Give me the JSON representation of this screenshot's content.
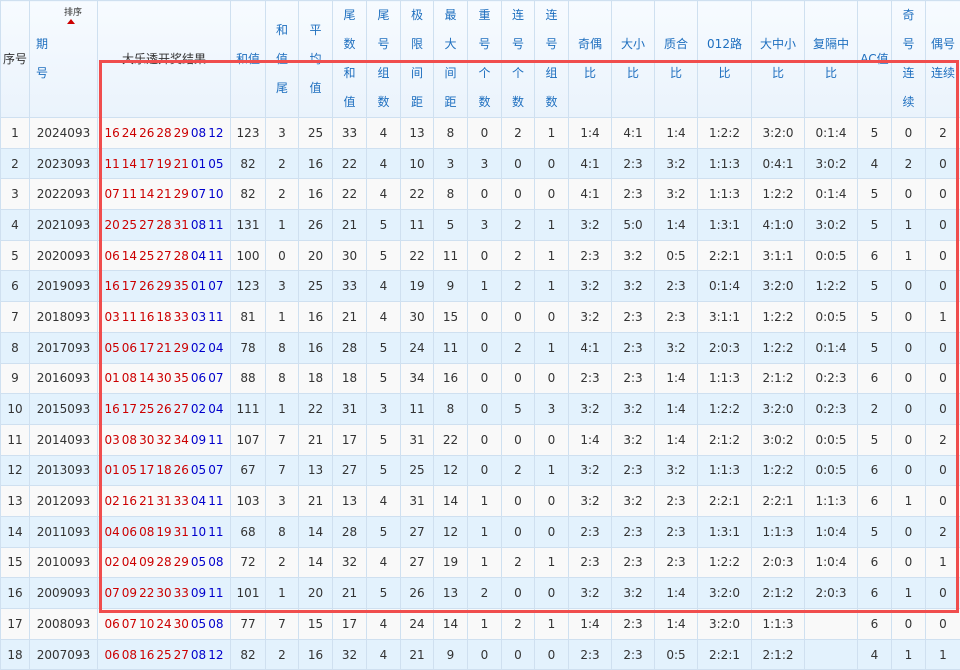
{
  "headers": [
    "序号",
    "期号",
    "大乐透开奖结果",
    "和值",
    "和值尾",
    "平均值",
    "尾数和值",
    "尾号组数",
    "极限间距",
    "最大间距",
    "重号个数",
    "连号个数",
    "连号组数",
    "奇偶比",
    "大小比",
    "质合比",
    "012路比",
    "大中小比",
    "复隔中比",
    "AC值",
    "奇号连续",
    "偶号连续"
  ],
  "sort_label": "排序",
  "colors": {
    "front": "#cc0000",
    "back": "#0000cc",
    "highlight": "#f04d4d",
    "header_text": "#1e6fbf"
  },
  "rows": [
    {
      "no": "1",
      "issue": "2024093",
      "front": [
        "16",
        "24",
        "26",
        "28",
        "29"
      ],
      "back": [
        "08",
        "12"
      ],
      "stats": [
        "123",
        "3",
        "25",
        "33",
        "4",
        "13",
        "8",
        "0",
        "2",
        "1",
        "1:4",
        "4:1",
        "1:4",
        "1:2:2",
        "3:2:0",
        "0:1:4",
        "5",
        "0",
        "2"
      ]
    },
    {
      "no": "2",
      "issue": "2023093",
      "front": [
        "11",
        "14",
        "17",
        "19",
        "21"
      ],
      "back": [
        "01",
        "05"
      ],
      "stats": [
        "82",
        "2",
        "16",
        "22",
        "4",
        "10",
        "3",
        "3",
        "0",
        "0",
        "4:1",
        "2:3",
        "3:2",
        "1:1:3",
        "0:4:1",
        "3:0:2",
        "4",
        "2",
        "0"
      ]
    },
    {
      "no": "3",
      "issue": "2022093",
      "front": [
        "07",
        "11",
        "14",
        "21",
        "29"
      ],
      "back": [
        "07",
        "10"
      ],
      "stats": [
        "82",
        "2",
        "16",
        "22",
        "4",
        "22",
        "8",
        "0",
        "0",
        "0",
        "4:1",
        "2:3",
        "3:2",
        "1:1:3",
        "1:2:2",
        "0:1:4",
        "5",
        "0",
        "0"
      ]
    },
    {
      "no": "4",
      "issue": "2021093",
      "front": [
        "20",
        "25",
        "27",
        "28",
        "31"
      ],
      "back": [
        "08",
        "11"
      ],
      "stats": [
        "131",
        "1",
        "26",
        "21",
        "5",
        "11",
        "5",
        "3",
        "2",
        "1",
        "3:2",
        "5:0",
        "1:4",
        "1:3:1",
        "4:1:0",
        "3:0:2",
        "5",
        "1",
        "0"
      ]
    },
    {
      "no": "5",
      "issue": "2020093",
      "front": [
        "06",
        "14",
        "25",
        "27",
        "28"
      ],
      "back": [
        "04",
        "11"
      ],
      "stats": [
        "100",
        "0",
        "20",
        "30",
        "5",
        "22",
        "11",
        "0",
        "2",
        "1",
        "2:3",
        "3:2",
        "0:5",
        "2:2:1",
        "3:1:1",
        "0:0:5",
        "6",
        "1",
        "0"
      ]
    },
    {
      "no": "6",
      "issue": "2019093",
      "front": [
        "16",
        "17",
        "26",
        "29",
        "35"
      ],
      "back": [
        "01",
        "07"
      ],
      "stats": [
        "123",
        "3",
        "25",
        "33",
        "4",
        "19",
        "9",
        "1",
        "2",
        "1",
        "3:2",
        "3:2",
        "2:3",
        "0:1:4",
        "3:2:0",
        "1:2:2",
        "5",
        "0",
        "0"
      ]
    },
    {
      "no": "7",
      "issue": "2018093",
      "front": [
        "03",
        "11",
        "16",
        "18",
        "33"
      ],
      "back": [
        "03",
        "11"
      ],
      "stats": [
        "81",
        "1",
        "16",
        "21",
        "4",
        "30",
        "15",
        "0",
        "0",
        "0",
        "3:2",
        "2:3",
        "2:3",
        "3:1:1",
        "1:2:2",
        "0:0:5",
        "5",
        "0",
        "1"
      ]
    },
    {
      "no": "8",
      "issue": "2017093",
      "front": [
        "05",
        "06",
        "17",
        "21",
        "29"
      ],
      "back": [
        "02",
        "04"
      ],
      "stats": [
        "78",
        "8",
        "16",
        "28",
        "5",
        "24",
        "11",
        "0",
        "2",
        "1",
        "4:1",
        "2:3",
        "3:2",
        "2:0:3",
        "1:2:2",
        "0:1:4",
        "5",
        "0",
        "0"
      ]
    },
    {
      "no": "9",
      "issue": "2016093",
      "front": [
        "01",
        "08",
        "14",
        "30",
        "35"
      ],
      "back": [
        "06",
        "07"
      ],
      "stats": [
        "88",
        "8",
        "18",
        "18",
        "5",
        "34",
        "16",
        "0",
        "0",
        "0",
        "2:3",
        "2:3",
        "1:4",
        "1:1:3",
        "2:1:2",
        "0:2:3",
        "6",
        "0",
        "0"
      ]
    },
    {
      "no": "10",
      "issue": "2015093",
      "front": [
        "16",
        "17",
        "25",
        "26",
        "27"
      ],
      "back": [
        "02",
        "04"
      ],
      "stats": [
        "111",
        "1",
        "22",
        "31",
        "3",
        "11",
        "8",
        "0",
        "5",
        "3",
        "3:2",
        "3:2",
        "1:4",
        "1:2:2",
        "3:2:0",
        "0:2:3",
        "2",
        "0",
        "0"
      ]
    },
    {
      "no": "11",
      "issue": "2014093",
      "front": [
        "03",
        "08",
        "30",
        "32",
        "34"
      ],
      "back": [
        "09",
        "11"
      ],
      "stats": [
        "107",
        "7",
        "21",
        "17",
        "5",
        "31",
        "22",
        "0",
        "0",
        "0",
        "1:4",
        "3:2",
        "1:4",
        "2:1:2",
        "3:0:2",
        "0:0:5",
        "5",
        "0",
        "2"
      ]
    },
    {
      "no": "12",
      "issue": "2013093",
      "front": [
        "01",
        "05",
        "17",
        "18",
        "26"
      ],
      "back": [
        "05",
        "07"
      ],
      "stats": [
        "67",
        "7",
        "13",
        "27",
        "5",
        "25",
        "12",
        "0",
        "2",
        "1",
        "3:2",
        "2:3",
        "3:2",
        "1:1:3",
        "1:2:2",
        "0:0:5",
        "6",
        "0",
        "0"
      ]
    },
    {
      "no": "13",
      "issue": "2012093",
      "front": [
        "02",
        "16",
        "21",
        "31",
        "33"
      ],
      "back": [
        "04",
        "11"
      ],
      "stats": [
        "103",
        "3",
        "21",
        "13",
        "4",
        "31",
        "14",
        "1",
        "0",
        "0",
        "3:2",
        "3:2",
        "2:3",
        "2:2:1",
        "2:2:1",
        "1:1:3",
        "6",
        "1",
        "0"
      ]
    },
    {
      "no": "14",
      "issue": "2011093",
      "front": [
        "04",
        "06",
        "08",
        "19",
        "31"
      ],
      "back": [
        "10",
        "11"
      ],
      "stats": [
        "68",
        "8",
        "14",
        "28",
        "5",
        "27",
        "12",
        "1",
        "0",
        "0",
        "2:3",
        "2:3",
        "2:3",
        "1:3:1",
        "1:1:3",
        "1:0:4",
        "5",
        "0",
        "2"
      ]
    },
    {
      "no": "15",
      "issue": "2010093",
      "front": [
        "02",
        "04",
        "09",
        "28",
        "29"
      ],
      "back": [
        "05",
        "08"
      ],
      "stats": [
        "72",
        "2",
        "14",
        "32",
        "4",
        "27",
        "19",
        "1",
        "2",
        "1",
        "2:3",
        "2:3",
        "2:3",
        "1:2:2",
        "2:0:3",
        "1:0:4",
        "6",
        "0",
        "1"
      ]
    },
    {
      "no": "16",
      "issue": "2009093",
      "front": [
        "07",
        "09",
        "22",
        "30",
        "33"
      ],
      "back": [
        "09",
        "11"
      ],
      "stats": [
        "101",
        "1",
        "20",
        "21",
        "5",
        "26",
        "13",
        "2",
        "0",
        "0",
        "3:2",
        "3:2",
        "1:4",
        "3:2:0",
        "2:1:2",
        "2:0:3",
        "6",
        "1",
        "0"
      ]
    },
    {
      "no": "17",
      "issue": "2008093",
      "front": [
        "06",
        "07",
        "10",
        "24",
        "30"
      ],
      "back": [
        "05",
        "08"
      ],
      "stats": [
        "77",
        "7",
        "15",
        "17",
        "4",
        "24",
        "14",
        "1",
        "2",
        "1",
        "1:4",
        "2:3",
        "1:4",
        "3:2:0",
        "1:1:3",
        "",
        "6",
        "0",
        "0"
      ]
    },
    {
      "no": "18",
      "issue": "2007093",
      "front": [
        "06",
        "08",
        "16",
        "25",
        "27"
      ],
      "back": [
        "08",
        "12"
      ],
      "stats": [
        "82",
        "2",
        "16",
        "32",
        "4",
        "21",
        "9",
        "0",
        "0",
        "0",
        "2:3",
        "2:3",
        "0:5",
        "2:2:1",
        "2:1:2",
        "",
        "4",
        "1",
        "1"
      ]
    }
  ]
}
